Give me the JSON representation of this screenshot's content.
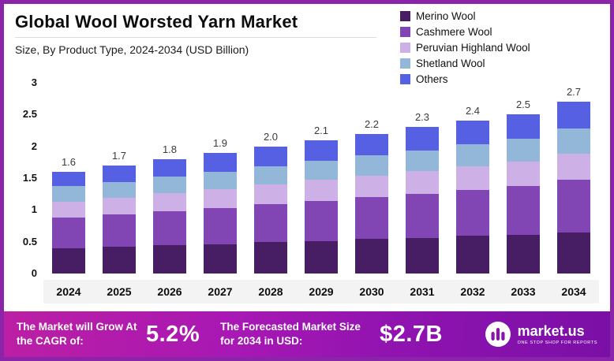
{
  "header": {
    "title": "Global Wool Worsted Yarn Market",
    "subtitle": "Size, By Product Type, 2024-2034 (USD Billion)"
  },
  "chart_data": {
    "type": "bar",
    "stacked": true,
    "title": "Global Wool Worsted Yarn Market",
    "subtitle": "Size, By Product Type, 2024-2034 (USD Billion)",
    "unit": "USD Billion",
    "categories": [
      "2024",
      "2025",
      "2026",
      "2027",
      "2028",
      "2029",
      "2030",
      "2031",
      "2032",
      "2033",
      "2034"
    ],
    "totals": [
      "1.6",
      "1.7",
      "1.8",
      "1.9",
      "2.0",
      "2.1",
      "2.2",
      "2.3",
      "2.4",
      "2.5",
      "2.7"
    ],
    "series": [
      {
        "name": "Merino Wool",
        "color": "#471d63",
        "values": [
          0.4,
          0.42,
          0.44,
          0.46,
          0.49,
          0.51,
          0.54,
          0.56,
          0.59,
          0.61,
          0.65
        ]
      },
      {
        "name": "Cashmere Wool",
        "color": "#8146b4",
        "values": [
          0.48,
          0.51,
          0.54,
          0.57,
          0.6,
          0.63,
          0.66,
          0.69,
          0.72,
          0.76,
          0.82
        ]
      },
      {
        "name": "Peruvian Highland Wool",
        "color": "#cdb0e6",
        "values": [
          0.25,
          0.26,
          0.28,
          0.3,
          0.31,
          0.33,
          0.34,
          0.36,
          0.37,
          0.39,
          0.42
        ]
      },
      {
        "name": "Shetland Wool",
        "color": "#92b7d8",
        "values": [
          0.24,
          0.25,
          0.26,
          0.27,
          0.29,
          0.3,
          0.32,
          0.33,
          0.35,
          0.36,
          0.39
        ]
      },
      {
        "name": "Others",
        "color": "#5561e2",
        "values": [
          0.23,
          0.26,
          0.28,
          0.3,
          0.31,
          0.33,
          0.34,
          0.36,
          0.37,
          0.38,
          0.42
        ]
      }
    ],
    "ylim": [
      0,
      3
    ],
    "yticks": [
      "0",
      "0.5",
      "1",
      "1.5",
      "2",
      "2.5",
      "3"
    ],
    "legend_position": "top-right",
    "grid": false
  },
  "banner": {
    "cagr_label": "The Market will Grow At the CAGR of:",
    "cagr_value": "5.2%",
    "forecast_label": "The Forecasted Market Size for 2034 in USD:",
    "forecast_value": "$2.7B",
    "brand": "market.us",
    "brand_tagline": "One Stop Shop For Reports"
  }
}
